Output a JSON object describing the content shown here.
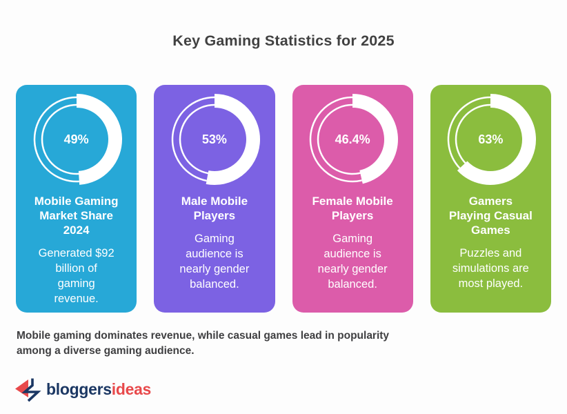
{
  "title": "Key Gaming Statistics for 2025",
  "summary": "Mobile gaming dominates revenue, while casual games lead in popularity\namong a diverse gaming audience.",
  "colors": {
    "background": "#FDFDFD",
    "heading_text": "#414141",
    "ring": "#FFFFFF"
  },
  "chart_data": {
    "type": "donut",
    "title": "Key Gaming Statistics for 2025",
    "series": [
      {
        "name": "Mobile Gaming Market Share 2024",
        "value_pct": 49,
        "value_label": "49%",
        "note": "Generated $92 billion of gaming revenue.",
        "color": "#27A8D7"
      },
      {
        "name": "Male Mobile Players",
        "value_pct": 53,
        "value_label": "53%",
        "note": "Gaming audience is nearly gender balanced.",
        "color": "#7C62E3"
      },
      {
        "name": "Female Mobile Players",
        "value_pct": 46.4,
        "value_label": "46.4%",
        "note": "Gaming audience is nearly gender balanced.",
        "color": "#DC5CAA"
      },
      {
        "name": "Gamers Playing Casual Games",
        "value_pct": 63,
        "value_label": "63%",
        "note": "Puzzles and simulations are most played.",
        "color": "#8BBD3E"
      }
    ]
  },
  "cards": [
    {
      "pct_label": "49%",
      "title": "Mobile Gaming\nMarket Share\n2024",
      "description": "Generated $92\nbillion of\ngaming\nrevenue."
    },
    {
      "pct_label": "53%",
      "title": "Male Mobile\nPlayers",
      "description": "Gaming\naudience is\nnearly gender\nbalanced."
    },
    {
      "pct_label": "46.4%",
      "title": "Female Mobile\nPlayers",
      "description": "Gaming\naudience is\nnearly gender\nbalanced."
    },
    {
      "pct_label": "63%",
      "title": "Gamers\nPlaying Casual\nGames",
      "description": "Puzzles and\nsimulations are\nmost played."
    }
  ],
  "logo": {
    "brand_primary": "bloggers",
    "brand_secondary": "ideas",
    "primary_color": "#1B3763",
    "secondary_color": "#E8494B",
    "icon_red": "#E8494B",
    "icon_navy": "#1B3763"
  }
}
